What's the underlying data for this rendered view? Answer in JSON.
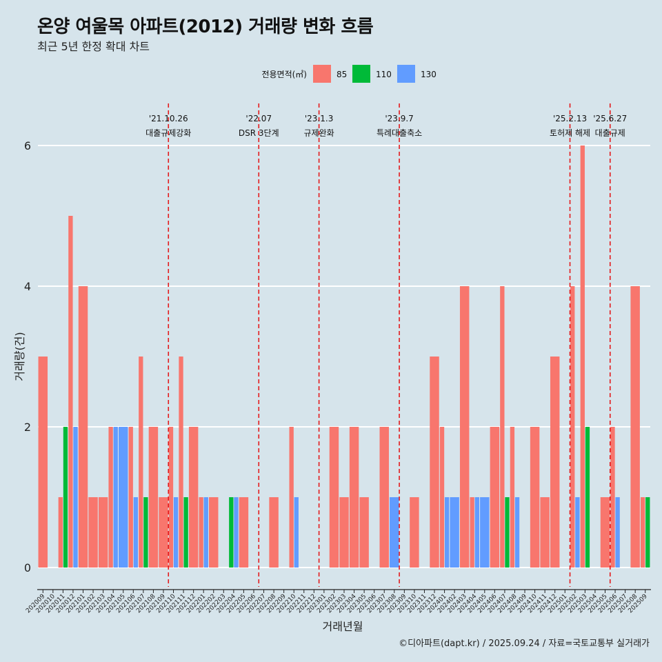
{
  "title": "온양 여울목 아파트(2012) 거래량 변화 흐름",
  "subtitle": "최근 5년 한정 확대 차트",
  "caption": "©디아파트(dapt.kr) / 2025.09.24 / 자료=국토교통부 실거래가",
  "chart_data": {
    "type": "bar",
    "xlabel": "거래년월",
    "ylabel": "거래량(건)",
    "ylim": [
      0,
      6
    ],
    "yticks": [
      0,
      2,
      4,
      6
    ],
    "grid": true,
    "legend": {
      "title": "전용면적(㎡)",
      "position": "top"
    },
    "colors": {
      "85": "#f8766d",
      "110": "#00ba38",
      "130": "#619cff"
    },
    "categories": [
      "202009",
      "202010",
      "202011",
      "202012",
      "202101",
      "202102",
      "202103",
      "202104",
      "202105",
      "202106",
      "202107",
      "202108",
      "202109",
      "202110",
      "202111",
      "202112",
      "202201",
      "202202",
      "202203",
      "202204",
      "202205",
      "202206",
      "202207",
      "202208",
      "202209",
      "202210",
      "202211",
      "202212",
      "202301",
      "202302",
      "202303",
      "202304",
      "202305",
      "202306",
      "202307",
      "202308",
      "202309",
      "202310",
      "202311",
      "202312",
      "202401",
      "202402",
      "202403",
      "202404",
      "202405",
      "202406",
      "202407",
      "202408",
      "202409",
      "202410",
      "202411",
      "202412",
      "202501",
      "202502",
      "202503",
      "202504",
      "202505",
      "202506",
      "202507",
      "202508",
      "202509"
    ],
    "series": [
      {
        "name": "85",
        "values": [
          3,
          0,
          1,
          5,
          4,
          1,
          1,
          2,
          0,
          2,
          3,
          2,
          1,
          2,
          3,
          2,
          1,
          1,
          0,
          0,
          1,
          0,
          0,
          1,
          0,
          2,
          0,
          0,
          0,
          2,
          1,
          2,
          1,
          0,
          2,
          0,
          0,
          1,
          0,
          3,
          2,
          0,
          4,
          1,
          0,
          2,
          4,
          2,
          0,
          2,
          1,
          3,
          0,
          4,
          6,
          0,
          1,
          2,
          0,
          4,
          1
        ]
      },
      {
        "name": "110",
        "values": [
          0,
          0,
          2,
          0,
          0,
          0,
          0,
          0,
          0,
          0,
          1,
          0,
          0,
          0,
          1,
          0,
          0,
          0,
          0,
          1,
          0,
          0,
          0,
          0,
          0,
          0,
          0,
          0,
          0,
          0,
          0,
          0,
          0,
          0,
          0,
          0,
          0,
          0,
          0,
          0,
          0,
          0,
          0,
          0,
          0,
          0,
          1,
          0,
          0,
          0,
          0,
          0,
          0,
          0,
          2,
          0,
          0,
          0,
          0,
          0,
          1
        ]
      },
      {
        "name": "130",
        "values": [
          0,
          0,
          0,
          2,
          0,
          0,
          0,
          2,
          2,
          1,
          0,
          0,
          0,
          1,
          0,
          0,
          1,
          0,
          0,
          1,
          0,
          0,
          0,
          0,
          0,
          1,
          0,
          0,
          0,
          0,
          0,
          0,
          0,
          0,
          0,
          1,
          0,
          0,
          0,
          0,
          1,
          1,
          0,
          1,
          1,
          0,
          0,
          1,
          0,
          0,
          0,
          0,
          0,
          1,
          0,
          0,
          0,
          1,
          0,
          0,
          0
        ]
      }
    ],
    "events": [
      {
        "date": "'21.10.26",
        "label": "대출규제강화",
        "x": "202110"
      },
      {
        "date": "'22.07",
        "label": "DSR 3단계",
        "x": "202207"
      },
      {
        "date": "'23.1.3",
        "label": "규제완화",
        "x": "202301"
      },
      {
        "date": "'23.9.7",
        "label": "특례대출축소",
        "x": "202309"
      },
      {
        "date": "'25.2.13",
        "label": "토허제 해제",
        "x": "202502"
      },
      {
        "date": "'25.6.27",
        "label": "대출규제",
        "x": "202506"
      }
    ]
  }
}
